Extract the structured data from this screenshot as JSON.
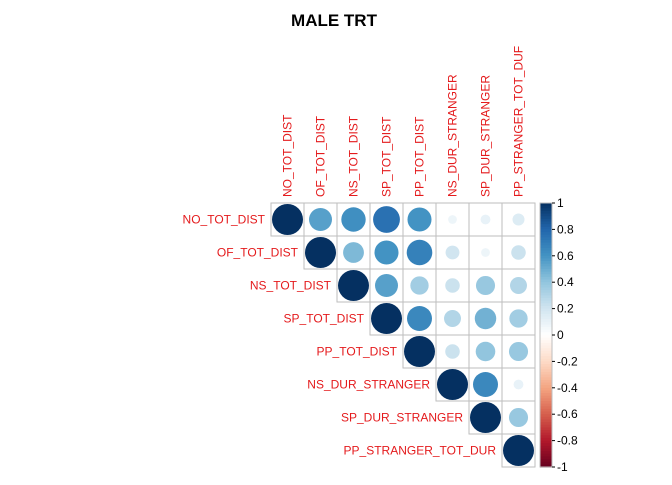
{
  "chart_data": {
    "type": "heatmap",
    "title": "MALE TRT",
    "variables": [
      "NO_TOT_DIST",
      "OF_TOT_DIST",
      "NS_TOT_DIST",
      "SP_TOT_DIST",
      "PP_TOT_DIST",
      "NS_DUR_STRANGER",
      "SP_DUR_STRANGER",
      "PP_STRANGER_TOT_DUR"
    ],
    "column_labels": [
      "NO_TOT_DIST",
      "OF_TOT_DIST",
      "NS_TOT_DIST",
      "SP_TOT_DIST",
      "PP_TOT_DIST",
      "NS_DUR_STRANGER",
      "SP_DUR_STRANGER",
      "PP_STRANGER_TOT_DUF"
    ],
    "matrix": [
      [
        1,
        0.55,
        0.62,
        0.75,
        0.6,
        0.08,
        0.1,
        0.15
      ],
      [
        0.55,
        1,
        0.45,
        0.6,
        0.68,
        0.2,
        0.08,
        0.22
      ],
      [
        0.62,
        0.45,
        1,
        0.55,
        0.35,
        0.22,
        0.38,
        0.3
      ],
      [
        0.75,
        0.6,
        0.55,
        1,
        0.65,
        0.3,
        0.48,
        0.35
      ],
      [
        0.6,
        0.68,
        0.35,
        0.65,
        1,
        0.22,
        0.4,
        0.38
      ],
      [
        0.08,
        0.2,
        0.22,
        0.3,
        0.22,
        1,
        0.65,
        0.1
      ],
      [
        0.1,
        0.08,
        0.38,
        0.48,
        0.4,
        0.65,
        1,
        0.38
      ],
      [
        0.15,
        0.22,
        0.3,
        0.35,
        0.38,
        0.1,
        0.38,
        1
      ]
    ],
    "shape": "upper triangle, circles",
    "legend": {
      "placement": "right",
      "ticks": [
        "1",
        "0.8",
        "0.6",
        "0.4",
        "0.2",
        "0",
        "-0.2",
        "-0.4",
        "-0.6",
        "-0.8",
        "-1"
      ],
      "range": [
        -1,
        1
      ],
      "color_low": "#67001F",
      "color_mid": "#FFFFFF",
      "color_high": "#053061"
    },
    "label_color": "#E41A1C",
    "grid": true
  }
}
